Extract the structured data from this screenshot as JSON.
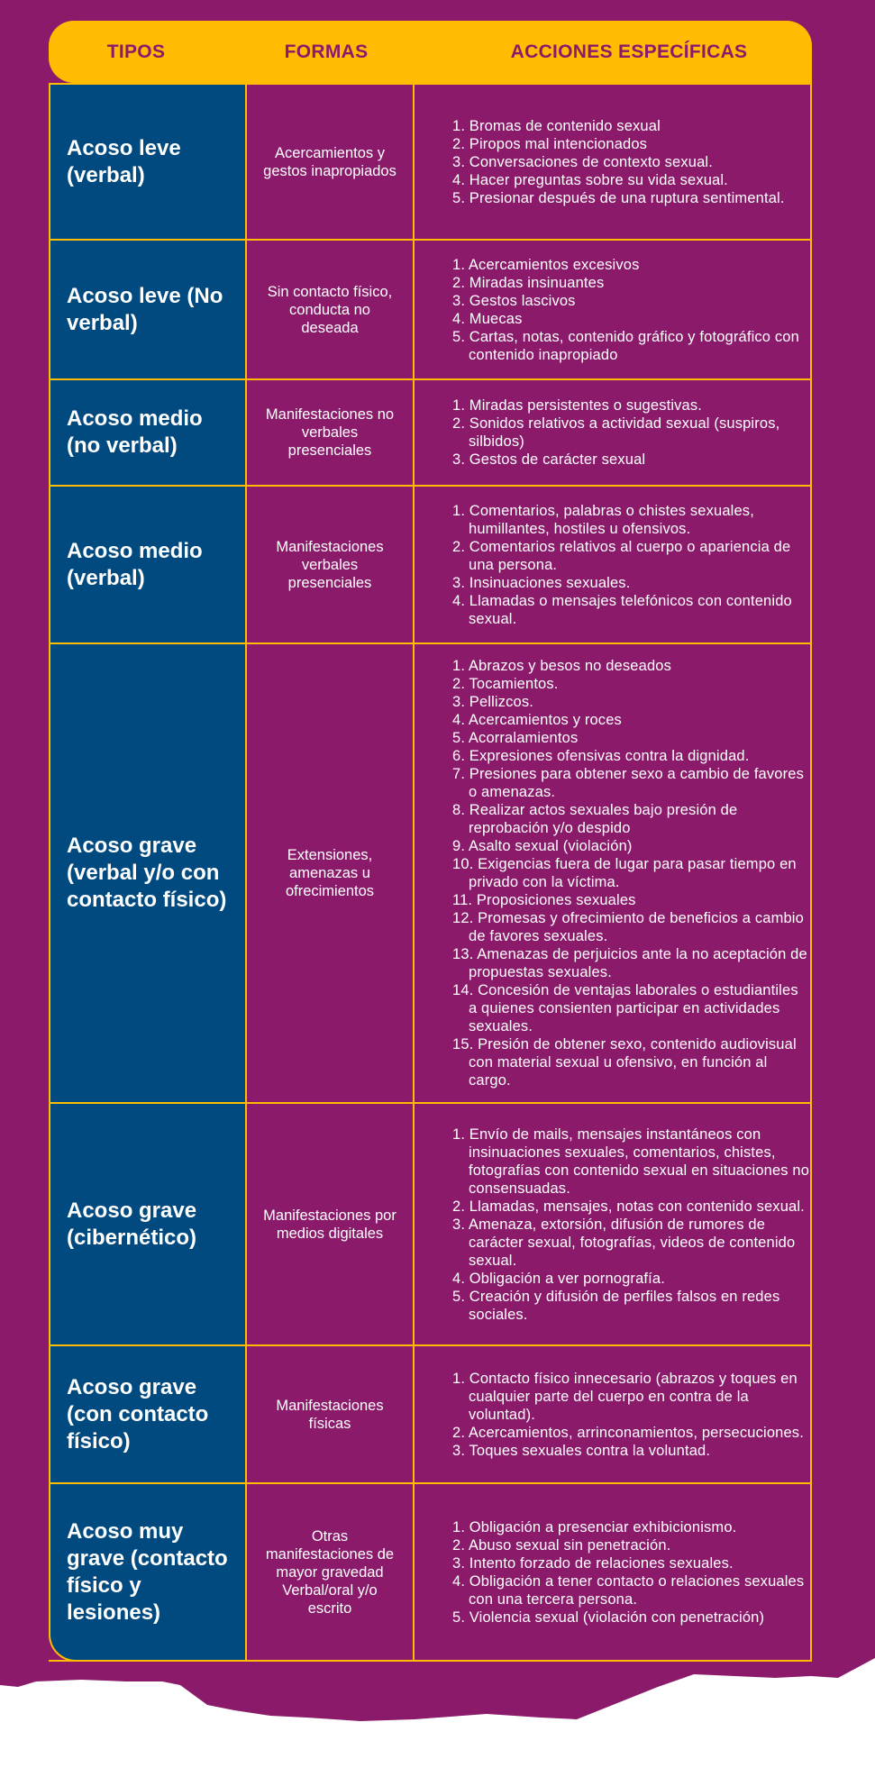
{
  "colors": {
    "background": "#8B1A6B",
    "header": "#FFBC00",
    "type_column": "#004A80",
    "lines": "#FFBC00",
    "text": "#FFFFFF"
  },
  "header": {
    "tipos": "TIPOS",
    "formas": "FORMAS",
    "acciones": "ACCIONES ESPECÍFICAS"
  },
  "rows": [
    {
      "tipo": "Acoso leve (verbal)",
      "forma": "Acercamientos y gestos inapropiados",
      "acciones": [
        "1. Bromas de contenido sexual",
        "2. Piropos mal intencionados",
        "3. Conversaciones de contexto sexual.",
        "4. Hacer preguntas sobre su vida sexual.",
        "5. Presionar después de una ruptura sentimental."
      ]
    },
    {
      "tipo": "Acoso leve (No verbal)",
      "forma": "Sin contacto físico, conducta no deseada",
      "acciones": [
        "1. Acercamientos excesivos",
        "2. Miradas insinuantes",
        "3. Gestos lascivos",
        "4. Muecas",
        "5. Cartas, notas, contenido gráfico y fotográfico con contenido inapropiado"
      ]
    },
    {
      "tipo": "Acoso medio (no verbal)",
      "forma": "Manifestaciones no verbales presenciales",
      "acciones": [
        "1. Miradas persistentes o sugestivas.",
        "2. Sonidos relativos a actividad sexual (suspiros, silbidos)",
        "3. Gestos de carácter sexual"
      ]
    },
    {
      "tipo": "Acoso medio (verbal)",
      "forma": "Manifestaciones verbales presenciales",
      "acciones": [
        "1. Comentarios, palabras o chistes sexuales, humillantes, hostiles u ofensivos.",
        "2. Comentarios relativos al cuerpo o apariencia de una persona.",
        "3. Insinuaciones sexuales.",
        "4. Llamadas o mensajes telefónicos con contenido sexual."
      ]
    },
    {
      "tipo": "Acoso grave (verbal y/o con contacto físico)",
      "forma": "Extensiones, amenazas u ofrecimientos",
      "acciones": [
        "1. Abrazos y besos no deseados",
        "2. Tocamientos.",
        "3. Pellizcos.",
        "4. Acercamientos y roces",
        "5. Acorralamientos",
        "6. Expresiones ofensivas contra la dignidad.",
        "7. Presiones para obtener sexo a cambio de favores o amenazas.",
        "8. Realizar actos sexuales bajo presión de reprobación y/o despido",
        "9. Asalto sexual (violación)",
        "10. Exigencias fuera de lugar para pasar tiempo en privado con la víctima.",
        "11. Proposiciones sexuales",
        "12. Promesas y ofrecimiento de beneficios a cambio de favores sexuales.",
        "13. Amenazas de perjuicios ante la no aceptación de propuestas sexuales.",
        "14. Concesión de ventajas laborales o estudiantiles a quienes consienten participar en actividades sexuales.",
        "15.  Presión de obtener sexo, contenido audiovisual con material sexual u ofensivo, en función al cargo."
      ]
    },
    {
      "tipo": "Acoso grave (cibernético)",
      "forma": "Manifestaciones por medios digitales",
      "acciones": [
        "1. Envío de mails, mensajes instantáneos con insinuaciones sexuales, comentarios, chistes, fotografías con contenido sexual en situaciones no consensuadas.",
        "2. Llamadas, mensajes, notas con contenido sexual.",
        "3. Amenaza, extorsión, difusión de rumores de carácter sexual, fotografías, videos de contenido sexual.",
        "4. Obligación a ver pornografía.",
        "5. Creación y difusión de perfiles falsos en redes sociales."
      ]
    },
    {
      "tipo": "Acoso grave (con contacto físico)",
      "forma": "Manifestaciones físicas",
      "acciones": [
        "1. Contacto físico innecesario (abrazos y toques en cualquier parte del cuerpo en contra de la voluntad).",
        "2. Acercamientos, arrinconamientos, persecuciones.",
        "3. Toques sexuales contra la voluntad."
      ]
    },
    {
      "tipo": "Acoso muy grave (contacto físico y lesiones)",
      "forma": "Otras manifestaciones de mayor gravedad Verbal/oral y/o escrito",
      "acciones": [
        "1. Obligación a presenciar exhibicionismo.",
        "2. Abuso sexual sin penetración.",
        "3. Intento forzado de relaciones sexuales.",
        "4. Obligación a tener contacto o relaciones sexuales con una tercera persona.",
        "5. Violencia sexual (violación con penetración)"
      ]
    }
  ]
}
